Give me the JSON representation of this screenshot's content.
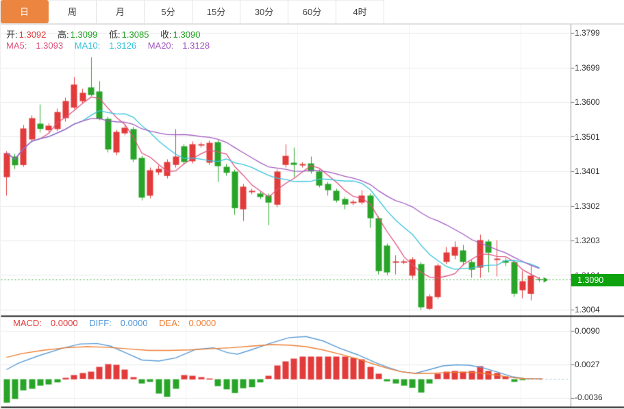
{
  "tabs": {
    "items": [
      {
        "label": "日",
        "active": true
      },
      {
        "label": "周",
        "active": false
      },
      {
        "label": "月",
        "active": false
      },
      {
        "label": "5分",
        "active": false
      },
      {
        "label": "15分",
        "active": false
      },
      {
        "label": "30分",
        "active": false
      },
      {
        "label": "60分",
        "active": false
      },
      {
        "label": "4时",
        "active": false
      }
    ]
  },
  "main_chart": {
    "ohlc": {
      "open_label": "开:",
      "open": "1.3092",
      "high_label": "高:",
      "high": "1.3099",
      "low_label": "低:",
      "low": "1.3085",
      "close_label": "收:",
      "close": "1.3090"
    },
    "ma": {
      "ma5_label": "MA5:",
      "ma5": "1.3093",
      "ma10_label": "MA10:",
      "ma10": "1.3126",
      "ma20_label": "MA20:",
      "ma20": "1.3128"
    },
    "axis_labels": [
      "1.3799",
      "1.3699",
      "1.3600",
      "1.3501",
      "1.3401",
      "1.3302",
      "1.3203",
      "1.3104",
      "1.3004"
    ],
    "current_price_badge": "1.3090"
  },
  "macd_panel": {
    "macd_label": "MACD:",
    "macd": "0.0000",
    "diff_label": "DIFF:",
    "diff": "0.0000",
    "dea_label": "DEA:",
    "dea": "0.0000",
    "axis_labels": [
      "0.0090",
      "0.0027",
      "-0.0036"
    ]
  },
  "colors": {
    "up": "#e23b3b",
    "down": "#28a428",
    "ma5": "#e0517c",
    "ma10": "#36c3dc",
    "ma20": "#a25ac2",
    "diff_line": "#5b9bd5",
    "dea_line": "#ee7e33",
    "price_line": "#2ca02c",
    "badge": "#0ea30e",
    "grid": "#ebebeb",
    "vgrid": "#f2f2f2",
    "axis_line": "#9a9a9a",
    "panel_border": "#1b1b1b",
    "tick": "#777777",
    "zero_dash": "#a5cede",
    "tab_active": "#ec8540"
  },
  "chart_data": [
    {
      "type": "candlestick",
      "title": "Daily candlestick chart with MA5/MA10/MA20 overlays",
      "ylim": [
        1.3004,
        1.3799
      ],
      "yticks": [
        1.3799,
        1.3699,
        1.36,
        1.3501,
        1.3401,
        1.3302,
        1.3203,
        1.3104,
        1.3004
      ],
      "current_price": 1.309,
      "ma_windows": [
        5,
        10,
        20
      ],
      "legend_position": "top-left",
      "grid": true,
      "candles_ohlc": [
        [
          1.3386,
          1.3461,
          1.3333,
          1.3455
        ],
        [
          1.3445,
          1.3453,
          1.341,
          1.342
        ],
        [
          1.3421,
          1.3535,
          1.3415,
          1.3526
        ],
        [
          1.3494,
          1.3563,
          1.3486,
          1.3555
        ],
        [
          1.3539,
          1.3594,
          1.3514,
          1.3524
        ],
        [
          1.352,
          1.3541,
          1.3512,
          1.3533
        ],
        [
          1.3524,
          1.3583,
          1.3518,
          1.3573
        ],
        [
          1.3555,
          1.3614,
          1.3545,
          1.3604
        ],
        [
          1.3585,
          1.3673,
          1.358,
          1.3651
        ],
        [
          1.3604,
          1.364,
          1.3598,
          1.3628
        ],
        [
          1.3644,
          1.373,
          1.3618,
          1.3622
        ],
        [
          1.3632,
          1.3661,
          1.3549,
          1.3553
        ],
        [
          1.3553,
          1.3559,
          1.3457,
          1.3465
        ],
        [
          1.3457,
          1.3522,
          1.3449,
          1.3516
        ],
        [
          1.3512,
          1.3535,
          1.3506,
          1.3528
        ],
        [
          1.3524,
          1.353,
          1.3429,
          1.3437
        ],
        [
          1.3441,
          1.3447,
          1.3319,
          1.3327
        ],
        [
          1.3333,
          1.3413,
          1.3325,
          1.3406
        ],
        [
          1.34,
          1.3419,
          1.3392,
          1.341
        ],
        [
          1.339,
          1.3437,
          1.3382,
          1.343
        ],
        [
          1.3421,
          1.3524,
          1.3413,
          1.3445
        ],
        [
          1.3474,
          1.348,
          1.3421,
          1.3429
        ],
        [
          1.3431,
          1.3488,
          1.3425,
          1.348
        ],
        [
          1.3476,
          1.3486,
          1.347,
          1.348
        ],
        [
          1.3427,
          1.349,
          1.3421,
          1.3484
        ],
        [
          1.3486,
          1.3492,
          1.3372,
          1.3417
        ],
        [
          1.3415,
          1.3423,
          1.339,
          1.3398
        ],
        [
          1.3402,
          1.3408,
          1.3278,
          1.3297
        ],
        [
          1.3293,
          1.3366,
          1.326,
          1.3358
        ],
        [
          1.3343,
          1.3352,
          1.3337,
          1.3347
        ],
        [
          1.3339,
          1.3345,
          1.3323,
          1.3329
        ],
        [
          1.3333,
          1.3339,
          1.3248,
          1.3313
        ],
        [
          1.3307,
          1.3408,
          1.3299,
          1.3402
        ],
        [
          1.3421,
          1.348,
          1.3413,
          1.3447
        ],
        [
          1.3427,
          1.347,
          1.3386,
          1.3421
        ],
        [
          1.3419,
          1.3429,
          1.3413,
          1.3423
        ],
        [
          1.3425,
          1.3445,
          1.3396,
          1.3402
        ],
        [
          1.3402,
          1.3408,
          1.3356,
          1.3362
        ],
        [
          1.3366,
          1.3372,
          1.3333,
          1.3348
        ],
        [
          1.3347,
          1.3352,
          1.3313,
          1.3319
        ],
        [
          1.3323,
          1.3329,
          1.3293,
          1.3307
        ],
        [
          1.3311,
          1.3321,
          1.3305,
          1.3315
        ],
        [
          1.3313,
          1.3348,
          1.3307,
          1.3333
        ],
        [
          1.3333,
          1.3339,
          1.324,
          1.3268
        ],
        [
          1.3268,
          1.3274,
          1.3107,
          1.3116
        ],
        [
          1.3189,
          1.3195,
          1.3105,
          1.3112
        ],
        [
          1.314,
          1.3162,
          1.3107,
          1.3144
        ],
        [
          1.314,
          1.315,
          1.3136,
          1.3144
        ],
        [
          1.3103,
          1.3156,
          1.3095,
          1.315
        ],
        [
          1.3136,
          1.3142,
          1.3004,
          1.3012
        ],
        [
          1.3008,
          1.305,
          1.3004,
          1.3044
        ],
        [
          1.3041,
          1.3138,
          1.3036,
          1.3132
        ],
        [
          1.3142,
          1.3185,
          1.3136,
          1.3169
        ],
        [
          1.316,
          1.3201,
          1.315,
          1.3185
        ],
        [
          1.3175,
          1.3191,
          1.3132,
          1.3142
        ],
        [
          1.3142,
          1.3148,
          1.3097,
          1.312
        ],
        [
          1.3126,
          1.3221,
          1.3097,
          1.3205
        ],
        [
          1.3201,
          1.3207,
          1.3112,
          1.3169
        ],
        [
          1.3148,
          1.3205,
          1.3101,
          1.3152
        ],
        [
          1.3146,
          1.3154,
          1.313,
          1.314
        ],
        [
          1.3142,
          1.3148,
          1.3042,
          1.3051
        ],
        [
          1.3061,
          1.3116,
          1.3038,
          1.3087
        ],
        [
          1.3051,
          1.313,
          1.3032,
          1.3103
        ],
        [
          1.3092,
          1.3099,
          1.3085,
          1.309
        ]
      ]
    },
    {
      "type": "bar",
      "title": "MACD histogram with DIFF and DEA lines",
      "ylim": [
        -0.0036,
        0.009
      ],
      "yticks": [
        0.009,
        0.0027,
        -0.0036
      ],
      "values": [
        -0.0044,
        -0.0037,
        -0.0021,
        -0.0018,
        -0.0012,
        -0.001,
        -0.0006,
        0.0003,
        0.0008,
        0.0011,
        0.0014,
        0.0023,
        0.0028,
        0.0027,
        0.0018,
        0.0004,
        -0.0008,
        -0.0005,
        -0.0027,
        -0.0033,
        -0.0018,
        0.0008,
        0.0007,
        0.0004,
        0.0001,
        -0.0013,
        -0.0019,
        -0.0026,
        -0.0017,
        -0.0015,
        -0.0006,
        0.0006,
        0.0026,
        0.0033,
        0.0039,
        0.0042,
        0.0043,
        0.0043,
        0.0042,
        0.0043,
        0.0042,
        0.004,
        0.0037,
        0.0023,
        0.001,
        -0.0004,
        -0.0008,
        -0.0012,
        -0.0016,
        -0.0025,
        -0.0008,
        0.001,
        0.0014,
        0.0016,
        0.0014,
        0.0016,
        0.0025,
        0.0016,
        0.0011,
        0.0005,
        -0.0005,
        -0.0002,
        -0.0001,
        0.0
      ],
      "diff_line": [
        [
          0,
          0.0018
        ],
        [
          1.4,
          0.003
        ],
        [
          3.8,
          0.0044
        ],
        [
          6.6,
          0.0058
        ],
        [
          8.7,
          0.0066
        ],
        [
          10.7,
          0.0067
        ],
        [
          12.3,
          0.0062
        ],
        [
          14.3,
          0.0048
        ],
        [
          16,
          0.0036
        ],
        [
          18,
          0.0034
        ],
        [
          20,
          0.004
        ],
        [
          22.4,
          0.0056
        ],
        [
          24.5,
          0.0059
        ],
        [
          26.1,
          0.005
        ],
        [
          27.3,
          0.0047
        ],
        [
          28.9,
          0.0055
        ],
        [
          31.3,
          0.0068
        ],
        [
          33.4,
          0.0078
        ],
        [
          35.4,
          0.008
        ],
        [
          37.4,
          0.0072
        ],
        [
          39.4,
          0.0058
        ],
        [
          41.5,
          0.0046
        ],
        [
          43.5,
          0.0032
        ],
        [
          45.1,
          0.0022
        ],
        [
          46.7,
          0.0014
        ],
        [
          48.3,
          0.0011
        ],
        [
          50,
          0.0018
        ],
        [
          51.6,
          0.0025
        ],
        [
          53.2,
          0.0027
        ],
        [
          54.8,
          0.0026
        ],
        [
          56.4,
          0.0021
        ],
        [
          58.1,
          0.0013
        ],
        [
          59.7,
          0.0005
        ],
        [
          61.3,
          0.0001
        ],
        [
          63.3,
          0.0
        ]
      ],
      "dea_line": [
        [
          0,
          0.0041
        ],
        [
          1.8,
          0.0048
        ],
        [
          4.2,
          0.0054
        ],
        [
          7,
          0.0059
        ],
        [
          9.5,
          0.0061
        ],
        [
          11.9,
          0.006
        ],
        [
          14.3,
          0.0057
        ],
        [
          16.8,
          0.0054
        ],
        [
          19.2,
          0.0054
        ],
        [
          21.6,
          0.0055
        ],
        [
          24,
          0.0057
        ],
        [
          26.5,
          0.0059
        ],
        [
          28.9,
          0.0062
        ],
        [
          31.3,
          0.0065
        ],
        [
          33.4,
          0.0064
        ],
        [
          35.4,
          0.0061
        ],
        [
          37.4,
          0.0055
        ],
        [
          39.4,
          0.0047
        ],
        [
          41.5,
          0.0038
        ],
        [
          43.5,
          0.0028
        ],
        [
          45.1,
          0.002
        ],
        [
          46.7,
          0.0014
        ],
        [
          48.3,
          0.0011
        ],
        [
          50,
          0.0011
        ],
        [
          51.6,
          0.0012
        ],
        [
          53.2,
          0.0013
        ],
        [
          54.8,
          0.0013
        ],
        [
          56.4,
          0.0011
        ],
        [
          58.1,
          0.0007
        ],
        [
          59.7,
          0.0003
        ],
        [
          61.3,
          0.0001
        ],
        [
          63.3,
          0.0
        ]
      ]
    }
  ]
}
